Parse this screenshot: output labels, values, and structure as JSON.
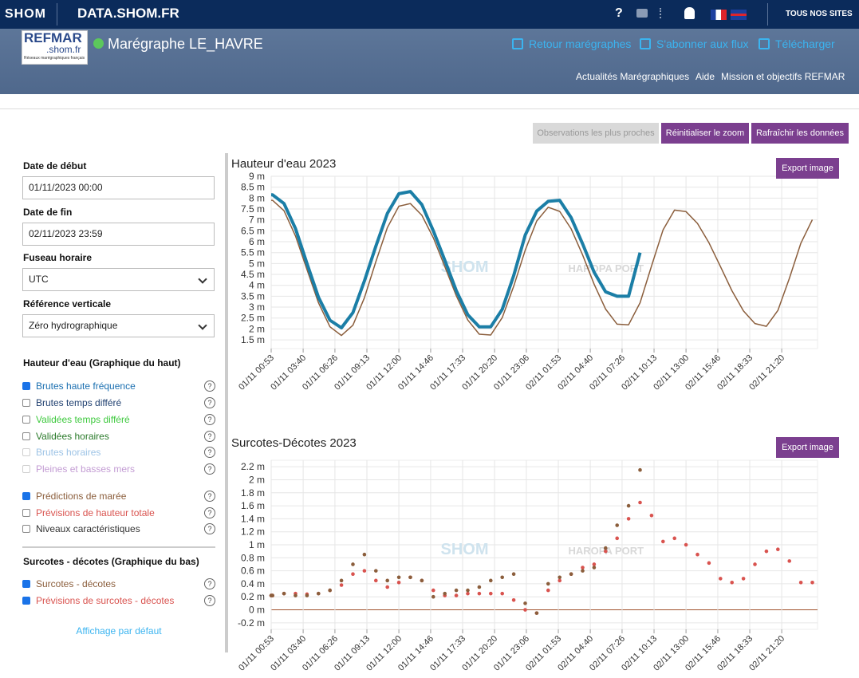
{
  "header": {
    "logo": "SHOM",
    "site": "DATA.SHOM.FR",
    "help": "?",
    "all_sites": "TOUS NOS SITES"
  },
  "subheader": {
    "refmar": "REFMAR",
    "refmar_domain": ".shom.fr",
    "refmar_tagline": "Réseaux marégraphiques français",
    "station": "Marégraphe LE_HAVRE",
    "actions": [
      "Retour marégraphes",
      "S'abonner aux flux",
      "Télécharger"
    ],
    "nav": [
      "Actualités Marégraphiques",
      "Aide",
      "Mission et objectifs REFMAR"
    ]
  },
  "toolbar": [
    "Observations les plus proches",
    "Réinitialiser le zoom",
    "Rafraîchir les données"
  ],
  "sidebar": {
    "help": "?",
    "fields": [
      {
        "label": "Date de début",
        "value": "01/11/2023 00:00"
      },
      {
        "label": "Date de fin",
        "value": "02/11/2023 23:59"
      },
      {
        "label": "Fuseau horaire",
        "value": "UTC",
        "select": true
      },
      {
        "label": "Référence verticale",
        "value": "Zéro hydrographique",
        "select": true
      }
    ],
    "groups": [
      {
        "title": "Hauteur d'eau (Graphique du haut)",
        "items": [
          {
            "label": "Brutes haute fréquence",
            "checked": true,
            "color": "#1a6fb0"
          },
          {
            "label": "Brutes temps différé",
            "checked": false,
            "color": "#1f3f6f"
          },
          {
            "label": "Validées temps différé",
            "checked": false,
            "color": "#3ec93e"
          },
          {
            "label": "Validées horaires",
            "checked": false,
            "color": "#2a7a2a"
          },
          {
            "label": "Brutes horaires",
            "checked": false,
            "color": "#5a9bd5",
            "disabled": true
          },
          {
            "label": "Pleines et basses mers",
            "checked": false,
            "color": "#9b59b6",
            "disabled": true
          }
        ]
      },
      {
        "items": [
          {
            "label": "Prédictions de marée",
            "checked": true,
            "color": "#8b5e3c"
          },
          {
            "label": "Prévisions de hauteur totale",
            "checked": false,
            "color": "#d9534f"
          },
          {
            "label": "Niveaux caractéristiques",
            "checked": false,
            "color": "#333333"
          }
        ]
      },
      {
        "title": "Surcotes - décotes (Graphique du bas)",
        "items": [
          {
            "label": "Surcotes - décotes",
            "checked": true,
            "color": "#8b5e3c"
          },
          {
            "label": "Prévisions de surcotes - décotes",
            "checked": true,
            "color": "#d9534f"
          }
        ]
      }
    ],
    "reset": "Affichage par défaut"
  },
  "chart_data": [
    {
      "type": "line",
      "title": "Hauteur d'eau 2023",
      "export": "Export image",
      "annotations": [
        "SHOM",
        "HAROPA PORT"
      ],
      "grid": true,
      "x": [
        0.883,
        1,
        2,
        3,
        4,
        5,
        6,
        7,
        8,
        9,
        10,
        11,
        12,
        13,
        14,
        15,
        16,
        17,
        18,
        19,
        20,
        21,
        22,
        23,
        24,
        25,
        26,
        27,
        28,
        29,
        30,
        31,
        32,
        33,
        34,
        35,
        36,
        37,
        38,
        39,
        40,
        41,
        42,
        43,
        44,
        45,
        46,
        47,
        48
      ],
      "xlim": [
        0.883,
        48.45
      ],
      "xticks": [
        {
          "value": 0.883,
          "label": "01/11 00:53"
        },
        {
          "value": 3.667,
          "label": "01/11 03:40"
        },
        {
          "value": 6.433,
          "label": "01/11 06:26"
        },
        {
          "value": 9.217,
          "label": "01/11 09:13"
        },
        {
          "value": 12,
          "label": "01/11 12:00"
        },
        {
          "value": 14.767,
          "label": "01/11 14:46"
        },
        {
          "value": 17.55,
          "label": "01/11 17:33"
        },
        {
          "value": 20.333,
          "label": "01/11 20:20"
        },
        {
          "value": 23.1,
          "label": "01/11 23:06"
        },
        {
          "value": 25.883,
          "label": "02/11 01:53"
        },
        {
          "value": 28.667,
          "label": "02/11 04:40"
        },
        {
          "value": 31.433,
          "label": "02/11 07:26"
        },
        {
          "value": 34.217,
          "label": "02/11 10:13"
        },
        {
          "value": 37,
          "label": "02/11 13:00"
        },
        {
          "value": 39.767,
          "label": "02/11 15:46"
        },
        {
          "value": 42.55,
          "label": "02/11 18:33"
        },
        {
          "value": 45.333,
          "label": "02/11 21:20"
        }
      ],
      "ylim": [
        1.1,
        9
      ],
      "yticks": [
        {
          "value": 1.5,
          "label": "1.5 m"
        },
        {
          "value": 2,
          "label": "2 m"
        },
        {
          "value": 2.5,
          "label": "2.5 m"
        },
        {
          "value": 3,
          "label": "3 m"
        },
        {
          "value": 3.5,
          "label": "3.5 m"
        },
        {
          "value": 4,
          "label": "4 m"
        },
        {
          "value": 4.5,
          "label": "4.5 m"
        },
        {
          "value": 5,
          "label": "5 m"
        },
        {
          "value": 5.5,
          "label": "5.5 m"
        },
        {
          "value": 6,
          "label": "6 m"
        },
        {
          "value": 6.5,
          "label": "6.5 m"
        },
        {
          "value": 7,
          "label": "7 m"
        },
        {
          "value": 7.5,
          "label": "7.5 m"
        },
        {
          "value": 8,
          "label": "8 m"
        },
        {
          "value": 8.5,
          "label": "8.5 m"
        },
        {
          "value": 9,
          "label": "9 m"
        }
      ],
      "series": [
        {
          "name": "Prédictions de marée",
          "color": "#8b5e3c",
          "width": 1.5,
          "values": [
            7.9,
            7.9,
            7.42,
            6.26,
            4.72,
            3.2,
            2.1,
            1.7,
            2.17,
            3.43,
            5.09,
            6.65,
            7.63,
            7.75,
            7.21,
            6.18,
            4.86,
            3.52,
            2.41,
            1.76,
            1.72,
            2.52,
            3.96,
            5.61,
            6.95,
            7.58,
            7.39,
            6.59,
            5.39,
            4.05,
            2.91,
            2.22,
            2.19,
            3.2,
            4.89,
            6.54,
            7.45,
            7.38,
            6.84,
            5.95,
            4.86,
            3.75,
            2.83,
            2.25,
            2.12,
            2.85,
            4.32,
            5.93,
            7.01
          ]
        },
        {
          "name": "Brutes haute fréquence",
          "color": "#1b7ea6",
          "width": 4,
          "values": [
            8.15,
            8.15,
            7.75,
            6.6,
            5.0,
            3.45,
            2.4,
            2.05,
            2.75,
            4.2,
            5.8,
            7.3,
            8.2,
            8.3,
            7.7,
            6.5,
            5.15,
            3.75,
            2.65,
            2.1,
            2.1,
            2.9,
            4.45,
            6.3,
            7.4,
            7.85,
            7.9,
            7.1,
            5.9,
            4.6,
            3.7,
            3.5,
            3.5,
            5.5,
            null,
            null,
            null,
            null,
            null,
            null,
            null,
            null,
            null,
            null,
            null,
            null,
            null,
            null,
            null
          ]
        }
      ]
    },
    {
      "type": "scatter",
      "title": "Surcotes-Décotes 2023",
      "export": "Export image",
      "annotations": [
        "SHOM",
        "HAROPA PORT"
      ],
      "grid": true,
      "x": [
        0.883,
        1,
        2,
        3,
        4,
        5,
        6,
        7,
        8,
        9,
        10,
        11,
        12,
        13,
        14,
        15,
        16,
        17,
        18,
        19,
        20,
        21,
        22,
        23,
        24,
        25,
        26,
        27,
        28,
        29,
        30,
        31,
        32,
        33,
        34,
        35,
        36,
        37,
        38,
        39,
        40,
        41,
        42,
        43,
        44,
        45,
        46,
        47,
        48
      ],
      "xlim": [
        0.883,
        48.45
      ],
      "xticks": [
        {
          "value": 0.883,
          "label": "01/11 00:53"
        },
        {
          "value": 3.667,
          "label": "01/11 03:40"
        },
        {
          "value": 6.433,
          "label": "01/11 06:26"
        },
        {
          "value": 9.217,
          "label": "01/11 09:13"
        },
        {
          "value": 12,
          "label": "01/11 12:00"
        },
        {
          "value": 14.767,
          "label": "01/11 14:46"
        },
        {
          "value": 17.55,
          "label": "01/11 17:33"
        },
        {
          "value": 20.333,
          "label": "01/11 20:20"
        },
        {
          "value": 23.1,
          "label": "01/11 23:06"
        },
        {
          "value": 25.883,
          "label": "02/11 01:53"
        },
        {
          "value": 28.667,
          "label": "02/11 04:40"
        },
        {
          "value": 31.433,
          "label": "02/11 07:26"
        },
        {
          "value": 34.217,
          "label": "02/11 10:13"
        },
        {
          "value": 37,
          "label": "02/11 13:00"
        },
        {
          "value": 39.767,
          "label": "02/11 15:46"
        },
        {
          "value": 42.55,
          "label": "02/11 18:33"
        },
        {
          "value": 45.333,
          "label": "02/11 21:20"
        }
      ],
      "ylim": [
        -0.3,
        2.3
      ],
      "yticks": [
        {
          "value": -0.2,
          "label": "-0.2 m"
        },
        {
          "value": 0,
          "label": "0 m"
        },
        {
          "value": 0.2,
          "label": "0.2 m"
        },
        {
          "value": 0.4,
          "label": "0.4 m"
        },
        {
          "value": 0.6,
          "label": "0.6 m"
        },
        {
          "value": 0.8,
          "label": "0.8 m"
        },
        {
          "value": 1,
          "label": "1 m"
        },
        {
          "value": 1.2,
          "label": "1.2 m"
        },
        {
          "value": 1.4,
          "label": "1.4 m"
        },
        {
          "value": 1.6,
          "label": "1.6 m"
        },
        {
          "value": 1.8,
          "label": "1.8 m"
        },
        {
          "value": 2,
          "label": "2 m"
        },
        {
          "value": 2.2,
          "label": "2.2 m"
        }
      ],
      "series": [
        {
          "name": "Prévisions de surcotes - décotes",
          "color": "#d9534f",
          "values": [
            0.22,
            0.22,
            0.25,
            0.25,
            0.24,
            0.25,
            0.3,
            0.38,
            0.55,
            0.6,
            0.45,
            0.35,
            0.42,
            0.5,
            0.45,
            0.3,
            0.22,
            0.22,
            0.25,
            0.25,
            0.25,
            0.25,
            0.15,
            0.0,
            -0.05,
            0.3,
            0.45,
            0.55,
            0.65,
            0.7,
            0.9,
            1.1,
            1.4,
            1.65,
            1.45,
            1.05,
            1.1,
            1.0,
            0.85,
            0.72,
            0.48,
            0.42,
            0.48,
            0.7,
            0.9,
            0.93,
            0.75,
            0.42,
            0.42
          ]
        },
        {
          "name": "Surcotes - décotes",
          "color": "#8b5e3c",
          "values": [
            0.22,
            0.22,
            0.25,
            0.22,
            0.22,
            0.25,
            0.3,
            0.45,
            0.7,
            0.85,
            0.6,
            0.45,
            0.5,
            0.5,
            0.45,
            0.2,
            0.25,
            0.3,
            0.3,
            0.35,
            0.45,
            0.5,
            0.55,
            0.1,
            -0.05,
            0.4,
            0.5,
            0.55,
            0.6,
            0.65,
            0.95,
            1.3,
            1.6,
            2.15,
            null,
            null,
            null,
            null,
            null,
            null,
            null,
            null,
            null,
            null,
            null,
            null,
            null,
            null,
            null
          ]
        }
      ]
    }
  ]
}
